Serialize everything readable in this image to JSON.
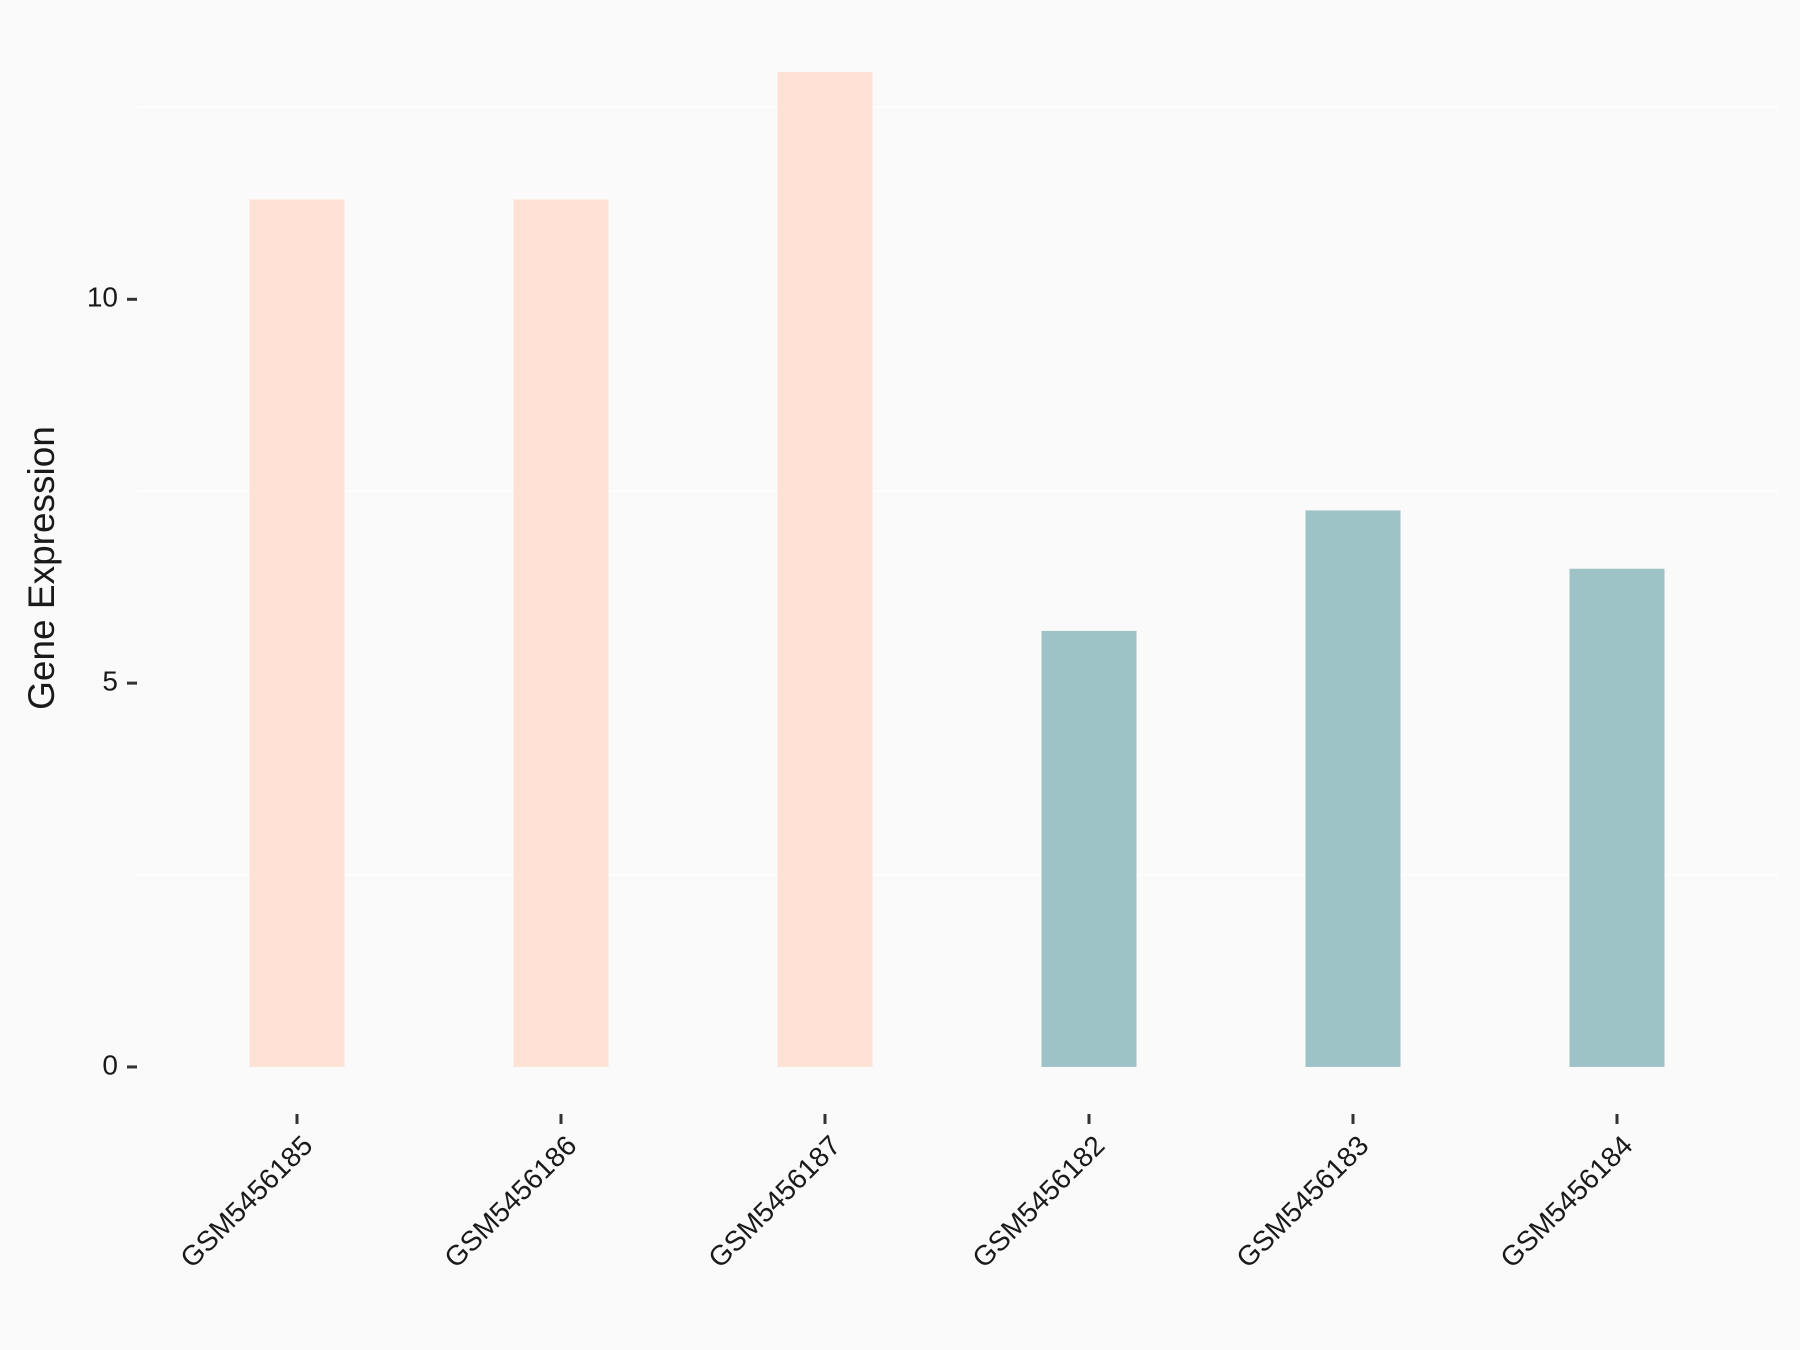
{
  "chart_data": {
    "type": "bar",
    "y_label": "Gene Expression",
    "categories": [
      "GSM5456185",
      "GSM5456186",
      "GSM5456187",
      "GSM5456182",
      "GSM5456183",
      "GSM5456184"
    ],
    "values": [
      11.3,
      11.3,
      12.96,
      5.68,
      7.25,
      6.49
    ],
    "colors": [
      "#ffe1d6",
      "#ffe1d6",
      "#ffe1d6",
      "#9dc3c7",
      "#9dc3c7",
      "#9dc3c7"
    ],
    "ylim": [
      -0.6,
      13.0
    ],
    "yticks": [
      0,
      5,
      10
    ],
    "yminor_grid": [
      2.5,
      7.5,
      12.5
    ],
    "grid": true
  }
}
